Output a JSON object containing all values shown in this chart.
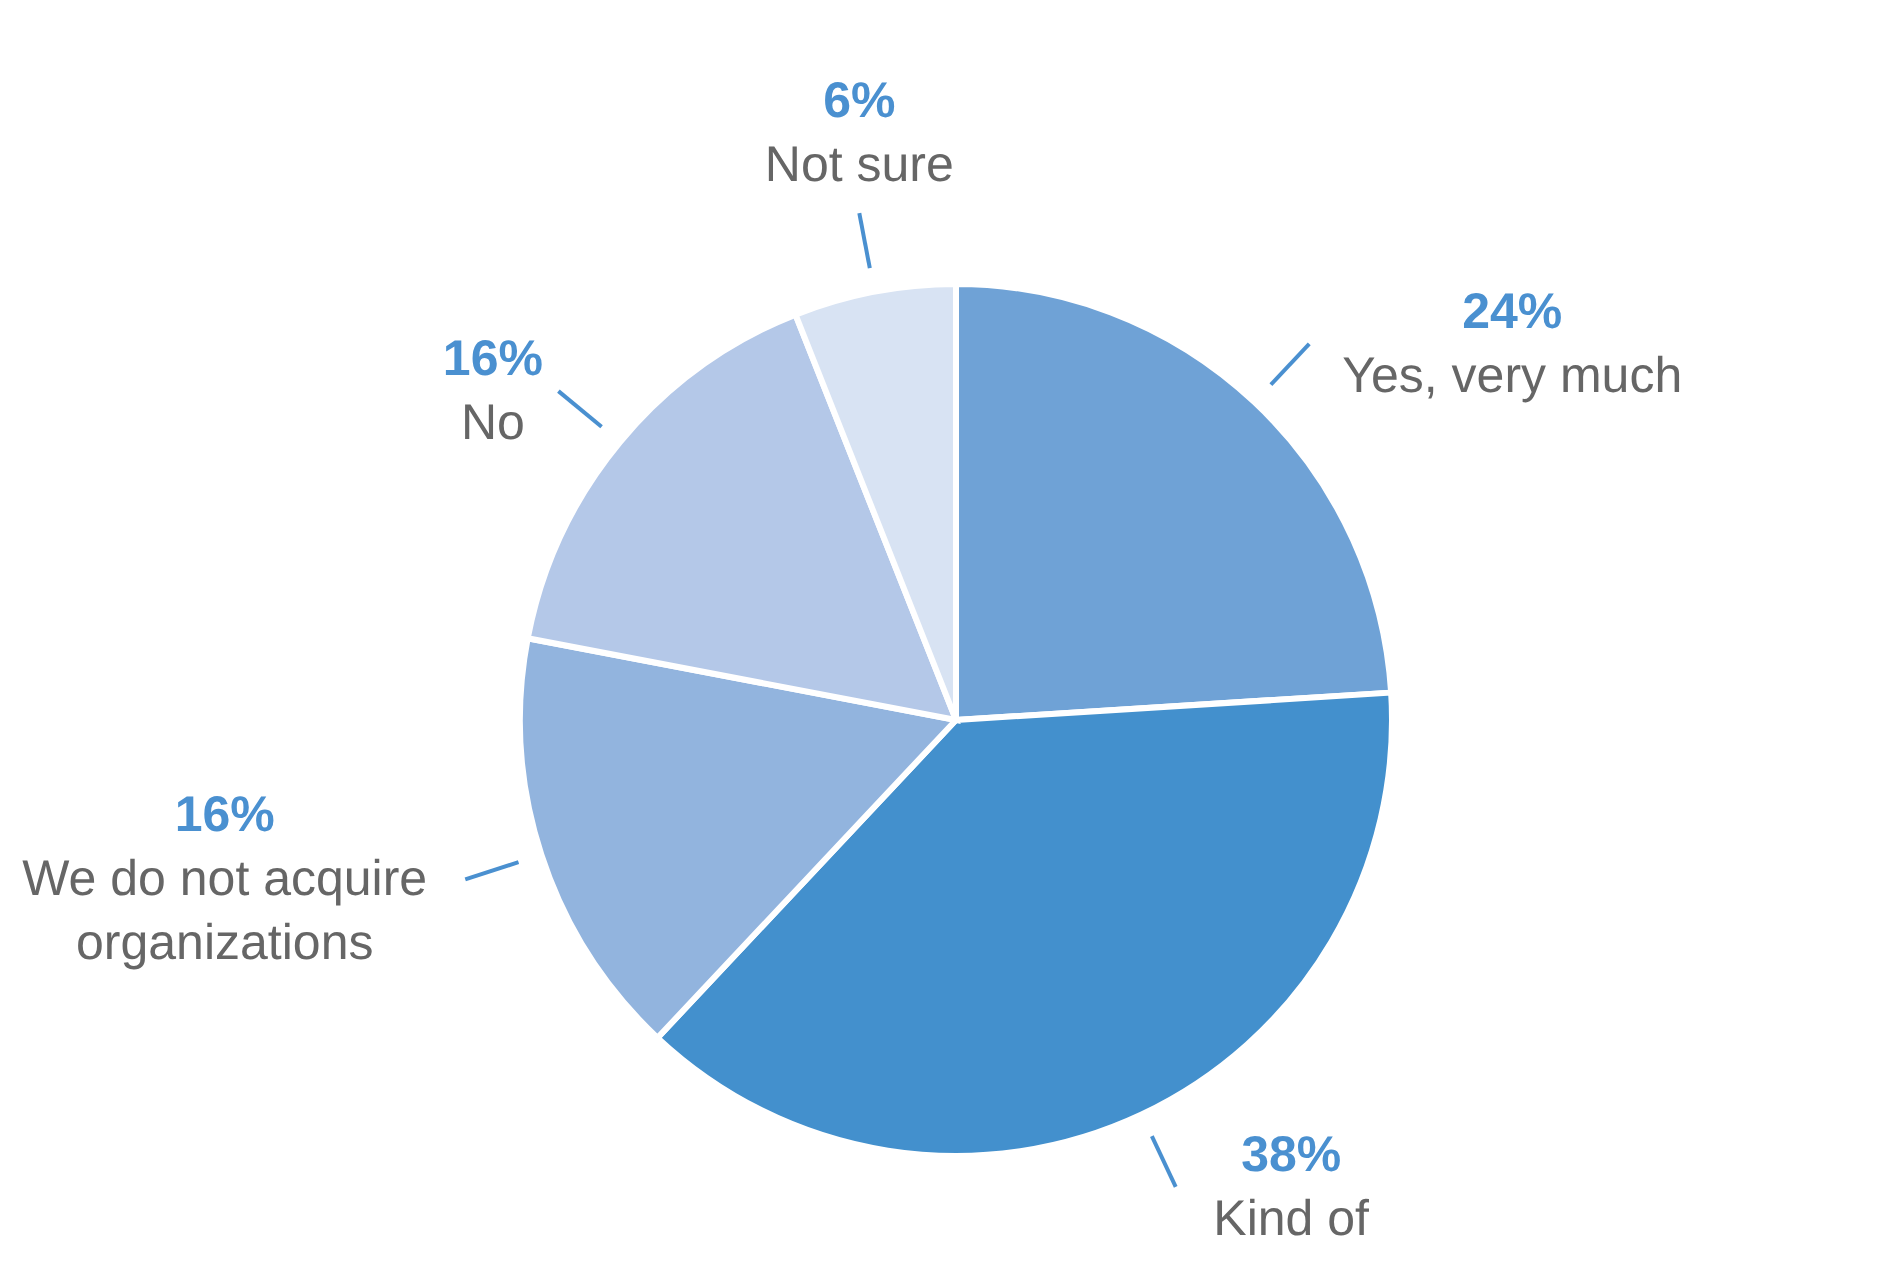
{
  "chart_data": {
    "type": "pie",
    "categories": [
      "Yes, very much",
      "Kind of",
      "We do not acquire organizations",
      "No",
      "Not sure"
    ],
    "values": [
      24,
      38,
      16,
      16,
      6
    ],
    "value_labels": [
      "24%",
      "38%",
      "16%",
      "16%",
      "6%"
    ],
    "colors": [
      "#6fa2d6",
      "#4390cd",
      "#92b4de",
      "#b4c8e8",
      "#d8e3f3"
    ]
  }
}
